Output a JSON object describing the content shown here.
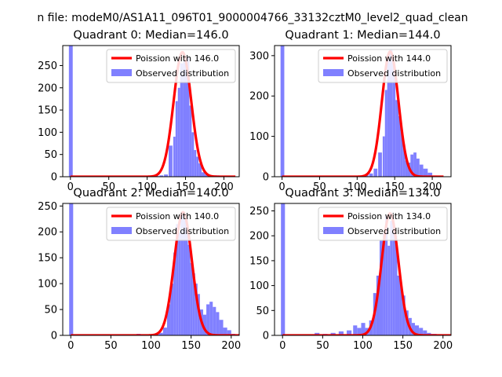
{
  "figure_title": "n file: modeM0/AS1A11_096T01_9000004766_33132cztM0_level2_quad_clean",
  "colors": {
    "hist": "#8080ff",
    "fit": "#ff0000",
    "axis": "#000000",
    "legend_border": "#cccccc"
  },
  "chart_data": [
    {
      "type": "bar",
      "title": "Quadrant 0: Median=146.0",
      "xlim": [
        -10,
        220
      ],
      "ylim": [
        0,
        295
      ],
      "xticks": [
        0,
        50,
        100,
        150,
        200
      ],
      "yticks": [
        0,
        50,
        100,
        150,
        200,
        250
      ],
      "legend": {
        "position": "top-right",
        "fit_label": "Poission with 146.0",
        "hist_label": "Observed distribution"
      },
      "median": 146.0,
      "peak": 280,
      "sigma": 11.5,
      "bins": [
        [
          -2,
          3,
          295
        ],
        [
          92,
          97,
          1
        ],
        [
          98,
          103,
          1
        ],
        [
          104,
          109,
          1
        ],
        [
          110,
          115,
          2
        ],
        [
          116,
          121,
          3
        ],
        [
          122,
          127,
          5
        ],
        [
          128,
          133,
          70
        ],
        [
          134,
          137,
          90
        ],
        [
          137,
          140,
          170
        ],
        [
          140,
          143,
          200
        ],
        [
          143,
          147,
          255
        ],
        [
          147,
          151,
          262
        ],
        [
          151,
          155,
          270
        ],
        [
          155,
          158,
          160
        ],
        [
          158,
          161,
          100
        ],
        [
          161,
          164,
          60
        ],
        [
          164,
          167,
          45
        ],
        [
          167,
          171,
          30
        ],
        [
          171,
          175,
          10
        ],
        [
          175,
          179,
          5
        ],
        [
          179,
          183,
          4
        ],
        [
          183,
          188,
          2
        ],
        [
          188,
          194,
          3
        ],
        [
          194,
          200,
          2
        ],
        [
          200,
          206,
          2
        ],
        [
          206,
          212,
          1
        ]
      ]
    },
    {
      "type": "bar",
      "title": "Quadrant 1: Median=144.0",
      "xlim": [
        -10,
        225
      ],
      "ylim": [
        0,
        325
      ],
      "xticks": [
        0,
        50,
        100,
        150,
        200
      ],
      "yticks": [
        0,
        100,
        200,
        300
      ],
      "legend": {
        "position": "top-right",
        "fit_label": "Poission with 144.0",
        "hist_label": "Observed distribution"
      },
      "median": 144.0,
      "peak": 310,
      "sigma": 11.0,
      "bins": [
        [
          -2,
          3,
          325
        ],
        [
          92,
          97,
          1
        ],
        [
          98,
          103,
          1
        ],
        [
          104,
          109,
          2
        ],
        [
          110,
          115,
          5
        ],
        [
          116,
          121,
          8
        ],
        [
          122,
          127,
          20
        ],
        [
          128,
          133,
          60
        ],
        [
          134,
          137,
          100
        ],
        [
          137,
          140,
          215
        ],
        [
          140,
          143,
          290
        ],
        [
          143,
          147,
          315
        ],
        [
          147,
          151,
          280
        ],
        [
          151,
          155,
          190
        ],
        [
          155,
          158,
          150
        ],
        [
          158,
          161,
          110
        ],
        [
          161,
          164,
          80
        ],
        [
          164,
          167,
          40
        ],
        [
          167,
          171,
          35
        ],
        [
          171,
          175,
          55
        ],
        [
          175,
          179,
          60
        ],
        [
          179,
          183,
          45
        ],
        [
          183,
          188,
          30
        ],
        [
          188,
          194,
          20
        ],
        [
          194,
          200,
          10
        ],
        [
          200,
          206,
          3
        ]
      ]
    },
    {
      "type": "bar",
      "title": "Quadrant 2: Median=140.0",
      "xlim": [
        -10,
        210
      ],
      "ylim": [
        0,
        255
      ],
      "xticks": [
        0,
        50,
        100,
        150,
        200
      ],
      "yticks": [
        0,
        50,
        100,
        150,
        200,
        250
      ],
      "legend": {
        "position": "top-right",
        "fit_label": "Poission with 140.0",
        "hist_label": "Observed distribution"
      },
      "median": 140.0,
      "peak": 238,
      "sigma": 11.0,
      "bins": [
        [
          -2,
          3,
          255
        ],
        [
          82,
          87,
          3
        ],
        [
          100,
          105,
          1
        ],
        [
          105,
          110,
          2
        ],
        [
          110,
          115,
          5
        ],
        [
          115,
          120,
          15
        ],
        [
          120,
          124,
          60
        ],
        [
          124,
          128,
          100
        ],
        [
          128,
          131,
          160
        ],
        [
          131,
          134,
          215
        ],
        [
          134,
          137,
          200
        ],
        [
          137,
          140,
          238
        ],
        [
          140,
          143,
          225
        ],
        [
          143,
          146,
          230
        ],
        [
          146,
          149,
          175
        ],
        [
          149,
          152,
          140
        ],
        [
          152,
          155,
          120
        ],
        [
          155,
          158,
          100
        ],
        [
          158,
          161,
          80
        ],
        [
          161,
          165,
          50
        ],
        [
          165,
          169,
          40
        ],
        [
          169,
          173,
          60
        ],
        [
          173,
          177,
          65
        ],
        [
          177,
          181,
          55
        ],
        [
          181,
          185,
          45
        ],
        [
          185,
          190,
          30
        ],
        [
          190,
          195,
          15
        ],
        [
          195,
          200,
          10
        ],
        [
          200,
          205,
          3
        ]
      ]
    },
    {
      "type": "bar",
      "title": "Quadrant 3: Median=134.0",
      "xlim": [
        -10,
        210
      ],
      "ylim": [
        0,
        265
      ],
      "xticks": [
        0,
        50,
        100,
        150,
        200
      ],
      "yticks": [
        0,
        50,
        100,
        150,
        200,
        250
      ],
      "legend": {
        "position": "top-right",
        "fit_label": "Poission with 134.0",
        "hist_label": "Observed distribution"
      },
      "median": 134.0,
      "peak": 245,
      "sigma": 10.5,
      "bins": [
        [
          -2,
          3,
          265
        ],
        [
          40,
          46,
          5
        ],
        [
          50,
          56,
          3
        ],
        [
          60,
          66,
          5
        ],
        [
          70,
          76,
          8
        ],
        [
          80,
          86,
          10
        ],
        [
          88,
          93,
          20
        ],
        [
          93,
          98,
          15
        ],
        [
          98,
          103,
          25
        ],
        [
          103,
          108,
          15
        ],
        [
          108,
          113,
          30
        ],
        [
          113,
          117,
          85
        ],
        [
          117,
          121,
          120
        ],
        [
          121,
          125,
          190
        ],
        [
          125,
          128,
          205
        ],
        [
          128,
          131,
          240
        ],
        [
          131,
          134,
          180
        ],
        [
          134,
          137,
          230
        ],
        [
          137,
          140,
          225
        ],
        [
          140,
          143,
          200
        ],
        [
          143,
          146,
          120
        ],
        [
          146,
          149,
          105
        ],
        [
          149,
          153,
          80
        ],
        [
          153,
          157,
          50
        ],
        [
          157,
          161,
          35
        ],
        [
          161,
          165,
          25
        ],
        [
          165,
          170,
          20
        ],
        [
          170,
          175,
          15
        ],
        [
          175,
          180,
          10
        ],
        [
          180,
          185,
          5
        ],
        [
          185,
          192,
          3
        ],
        [
          192,
          200,
          2
        ]
      ]
    }
  ]
}
